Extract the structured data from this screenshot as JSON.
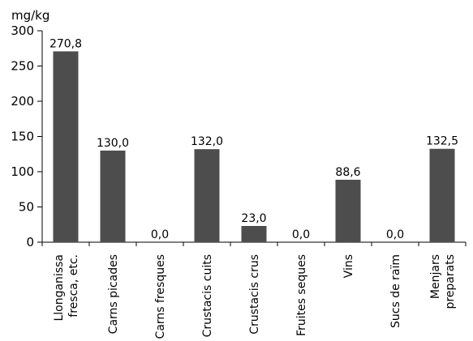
{
  "chart_data": {
    "type": "bar",
    "ylabel": "mg/kg",
    "ylim": [
      0,
      300
    ],
    "yticks": [
      "0",
      "50",
      "100",
      "150",
      "200",
      "250",
      "300"
    ],
    "bar_color": "#4d4d4d",
    "categories": [
      [
        "Llonganissa",
        "fresca, etc."
      ],
      [
        "Carns picades"
      ],
      [
        "Carns fresques"
      ],
      [
        "Crustacis cuits"
      ],
      [
        "Crustacis crus"
      ],
      [
        "Fruites seques"
      ],
      [
        "Vins"
      ],
      [
        "Sucs de raïm"
      ],
      [
        "Menjars",
        "preparats"
      ]
    ],
    "values": [
      270.8,
      130.0,
      0.0,
      132.0,
      23.0,
      0.0,
      88.6,
      0.0,
      132.5
    ],
    "value_labels": [
      "270,8",
      "130,0",
      "0,0",
      "132,0",
      "23,0",
      "0,0",
      "88,6",
      "0,0",
      "132,5"
    ]
  }
}
